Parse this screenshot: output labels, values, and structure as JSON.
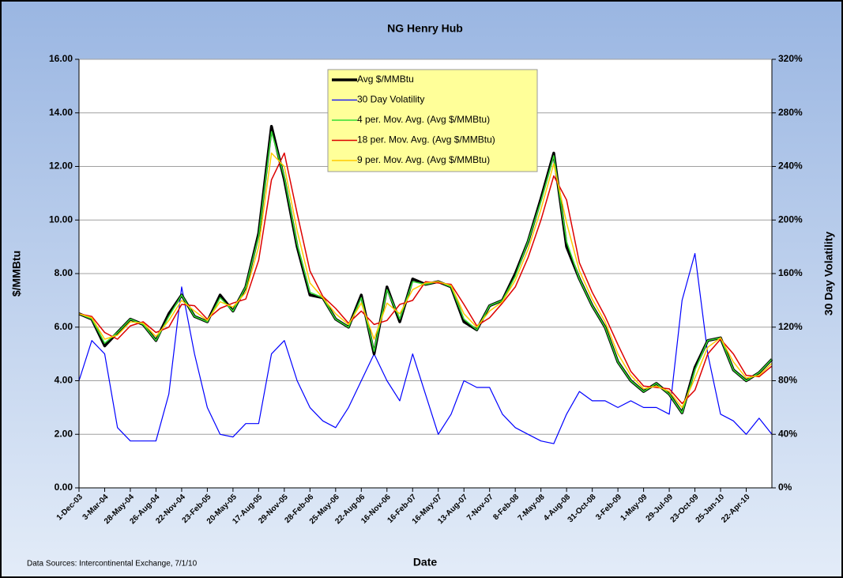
{
  "chart_data": {
    "type": "line",
    "title": "NG Henry Hub",
    "x_label": "Date",
    "y_label": "$/MMBtu",
    "y2_label": "30 Day Volatility",
    "footnote": "Data Sources:  Intercontinental Exchange, 7/1/10",
    "categories": [
      "1-Dec-03",
      null,
      "3-Mar-04",
      null,
      "28-May-04",
      null,
      "26-Aug-04",
      null,
      "22-Nov-04",
      null,
      "23-Feb-05",
      null,
      "20-May-05",
      null,
      "17-Aug-05",
      null,
      "29-Nov-05",
      null,
      "28-Feb-06",
      null,
      "25-May-06",
      null,
      "22-Aug-06",
      null,
      "16-Nov-06",
      null,
      "16-Feb-07",
      null,
      "16-May-07",
      null,
      "13-Aug-07",
      null,
      "7-Nov-07",
      null,
      "8-Feb-08",
      null,
      "7-May-08",
      null,
      "4-Aug-08",
      null,
      "31-Oct-08",
      null,
      "3-Feb-09",
      null,
      "1-May-09",
      null,
      "29-Jul-09",
      null,
      "23-Oct-09",
      null,
      "25-Jan-10",
      null,
      "22-Apr-10",
      null,
      null
    ],
    "ylim": [
      0,
      16
    ],
    "yticks": [
      {
        "value": 0,
        "label": "0.00"
      },
      {
        "value": 2,
        "label": "2.00"
      },
      {
        "value": 4,
        "label": "4.00"
      },
      {
        "value": 6,
        "label": "6.00"
      },
      {
        "value": 8,
        "label": "8.00"
      },
      {
        "value": 10,
        "label": "10.00"
      },
      {
        "value": 12,
        "label": "12.00"
      },
      {
        "value": 14,
        "label": "14.00"
      },
      {
        "value": 16,
        "label": "16.00"
      }
    ],
    "y2lim": [
      0,
      320
    ],
    "y2ticks": [
      {
        "value": 0,
        "label": "0%"
      },
      {
        "value": 40,
        "label": "40%"
      },
      {
        "value": 80,
        "label": "80%"
      },
      {
        "value": 120,
        "label": "120%"
      },
      {
        "value": 160,
        "label": "160%"
      },
      {
        "value": 200,
        "label": "200%"
      },
      {
        "value": 240,
        "label": "240%"
      },
      {
        "value": 280,
        "label": "280%"
      },
      {
        "value": 320,
        "label": "320%"
      }
    ],
    "grid": true,
    "series": [
      {
        "name": "Avg $/MMBtu",
        "color": "#000000",
        "values": [
          6.5,
          6.3,
          5.3,
          5.8,
          6.3,
          6.1,
          5.5,
          6.5,
          7.2,
          6.4,
          6.2,
          7.2,
          6.6,
          7.5,
          9.5,
          13.5,
          11.5,
          9.0,
          7.2,
          7.1,
          6.3,
          6.0,
          7.2,
          5.0,
          7.5,
          6.2,
          7.8,
          7.6,
          7.7,
          7.5,
          6.2,
          5.9,
          6.8,
          7.0,
          8.0,
          9.2,
          10.8,
          12.5,
          9.0,
          7.8,
          6.8,
          6.0,
          4.7,
          4.0,
          3.6,
          3.9,
          3.5,
          2.8,
          4.5,
          5.5,
          5.6,
          4.4,
          4.0,
          4.3,
          4.8
        ]
      },
      {
        "name": "30 Day Volatility",
        "color": "#0000ff",
        "axis": "y2",
        "values": [
          80,
          110,
          100,
          45,
          35,
          35,
          35,
          70,
          150,
          100,
          60,
          40,
          38,
          48,
          48,
          100,
          110,
          80,
          60,
          50,
          45,
          60,
          80,
          100,
          80,
          65,
          100,
          70,
          40,
          55,
          80,
          75,
          75,
          55,
          45,
          40,
          35,
          33,
          55,
          72,
          65,
          65,
          60,
          65,
          60,
          60,
          55,
          140,
          175,
          100,
          55,
          50,
          40,
          52,
          40
        ]
      },
      {
        "name": "4 per. Mov. Avg. (Avg $/MMBtu)",
        "color": "#33dd33",
        "values": [
          6.5,
          6.3,
          5.4,
          5.8,
          6.3,
          6.1,
          5.5,
          6.4,
          7.2,
          6.4,
          6.2,
          7.1,
          6.6,
          7.5,
          9.4,
          13.3,
          11.6,
          9.1,
          7.3,
          7.1,
          6.3,
          6.0,
          7.1,
          5.1,
          7.4,
          6.3,
          7.7,
          7.6,
          7.7,
          7.5,
          6.3,
          5.9,
          6.8,
          7.0,
          7.9,
          9.2,
          10.7,
          12.4,
          9.2,
          7.8,
          6.8,
          6.0,
          4.7,
          4.0,
          3.6,
          3.9,
          3.5,
          2.8,
          4.4,
          5.5,
          5.6,
          4.4,
          4.0,
          4.3,
          4.8
        ]
      },
      {
        "name": "18 per. Mov. Avg. (Avg $/MMBtu)",
        "color": "#dd0000",
        "values": [
          6.5,
          6.4,
          5.8,
          5.55,
          6.05,
          6.2,
          5.8,
          6.0,
          6.85,
          6.8,
          6.3,
          6.7,
          6.9,
          7.05,
          8.5,
          11.5,
          12.5,
          10.25,
          8.1,
          7.15,
          6.7,
          6.15,
          6.6,
          6.1,
          6.25,
          6.85,
          7.0,
          7.7,
          7.65,
          7.6,
          6.85,
          6.05,
          6.35,
          6.9,
          7.5,
          8.6,
          10.0,
          11.65,
          10.75,
          8.4,
          7.3,
          6.4,
          5.35,
          4.35,
          3.8,
          3.75,
          3.7,
          3.15,
          3.65,
          5.0,
          5.55,
          5.0,
          4.2,
          4.15,
          4.55
        ]
      },
      {
        "name": "9 per. Mov. Avg. (Avg $/MMBtu)",
        "color": "#ffcc00",
        "values": [
          6.5,
          6.35,
          5.55,
          5.7,
          6.2,
          6.15,
          5.65,
          6.25,
          7.0,
          6.6,
          6.25,
          6.95,
          6.75,
          7.3,
          9.0,
          12.5,
          12.0,
          9.6,
          7.65,
          7.1,
          6.5,
          6.1,
          6.9,
          5.55,
          6.9,
          6.5,
          7.4,
          7.65,
          7.7,
          7.55,
          6.5,
          6.0,
          6.6,
          6.95,
          7.75,
          8.9,
          10.4,
          12.1,
          9.9,
          8.1,
          7.05,
          6.2,
          5.0,
          4.2,
          3.7,
          3.8,
          3.6,
          3.0,
          4.1,
          5.25,
          5.6,
          4.7,
          4.1,
          4.2,
          4.65
        ]
      }
    ]
  }
}
